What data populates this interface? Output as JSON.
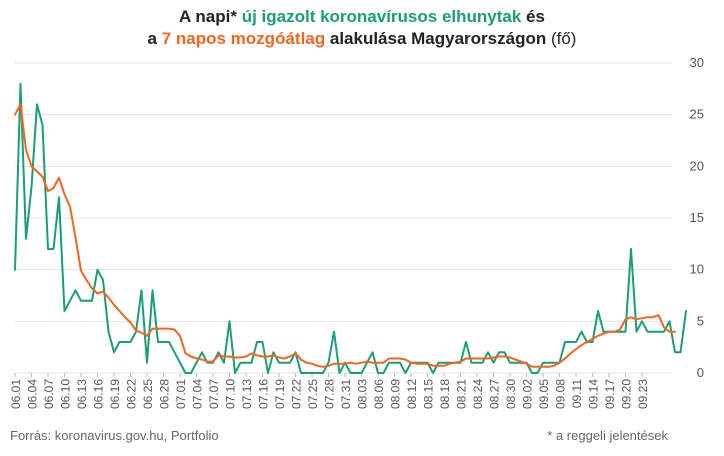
{
  "title": {
    "line1_pre": "A napi* ",
    "line1_green": "új igazolt koronavírusos elhunytak",
    "line1_post": " és",
    "line2_pre": "a ",
    "line2_orange": "7 napos mozgóátlag",
    "line2_post": " alakulása Magyarországon",
    "line2_unit": " (fő)"
  },
  "footer": {
    "source": "Forrás: koronavirus.gov.hu, Portfolio",
    "note": "* a reggeli jelentések"
  },
  "colors": {
    "daily": "#1a9e77",
    "avg": "#f26522",
    "grid": "#e4e4e4",
    "axis_text": "#555555"
  },
  "chart_data": {
    "type": "line",
    "start_date": "06.01",
    "x_tick_labels": [
      "06.01",
      "06.04",
      "06.07",
      "06.10",
      "06.13",
      "06.16",
      "06.19",
      "06.22",
      "06.25",
      "06.28",
      "07.01",
      "07.04",
      "07.07",
      "07.10",
      "07.13",
      "07.16",
      "07.19",
      "07.22",
      "07.25",
      "07.28",
      "07.31",
      "08.03",
      "08.06",
      "08.09",
      "08.12",
      "08.15",
      "08.18",
      "08.21",
      "08.24",
      "08.27",
      "08.30",
      "09.02",
      "09.05",
      "09.08",
      "09.11",
      "09.14",
      "09.17",
      "09.20",
      "09.23"
    ],
    "y_ticks": [
      0,
      5,
      10,
      15,
      20,
      25,
      30
    ],
    "ylim": [
      0,
      30
    ],
    "y_axis_side": "right",
    "grid": true,
    "series": [
      {
        "key": "daily",
        "values": [
          10,
          28,
          13,
          18,
          26,
          24,
          12,
          12,
          17,
          6,
          7,
          8,
          7,
          7,
          7,
          10,
          9,
          4,
          2,
          3,
          3,
          3,
          4,
          8,
          1,
          8,
          3,
          3,
          3,
          2,
          1,
          0,
          0,
          1,
          2,
          1,
          1,
          2,
          1,
          5,
          0,
          1,
          1,
          1,
          3,
          3,
          0,
          2,
          1,
          1,
          1,
          2,
          0,
          0,
          0,
          0,
          0,
          1,
          4,
          0,
          1,
          0,
          0,
          0,
          1,
          2,
          0,
          0,
          1,
          1,
          1,
          0,
          1,
          1,
          1,
          1,
          0,
          1,
          1,
          1,
          1,
          1,
          3,
          1,
          1,
          1,
          2,
          1,
          2,
          2,
          1,
          1,
          1,
          1,
          0,
          0,
          1,
          1,
          1,
          1,
          3,
          3,
          3,
          4,
          3,
          3,
          6,
          4,
          4,
          4,
          4,
          4,
          12,
          4,
          5,
          4,
          4,
          4,
          4,
          5,
          2,
          2,
          6
        ]
      },
      {
        "key": "avg",
        "values": [
          25,
          26,
          21.6,
          20,
          19.5,
          19,
          17.6,
          17.9,
          18.9,
          17.3,
          16.1,
          13.1,
          9.9,
          9,
          8.2,
          7.7,
          7.9,
          7.3,
          6.6,
          6,
          5.4,
          4.9,
          4.1,
          3.9,
          3.6,
          4.3,
          4.3,
          4.3,
          4.3,
          4.2,
          3.6,
          1.9,
          1.6,
          1.4,
          1.3,
          1.1,
          1.1,
          1.7,
          1.6,
          1.6,
          1.5,
          1.5,
          1.6,
          1.9,
          1.7,
          1.6,
          1.6,
          1.7,
          1.5,
          1.4,
          1.6,
          1.9,
          1.3,
          1,
          0.9,
          0.7,
          0.6,
          0.7,
          0.9,
          0.9,
          0.9,
          1,
          0.9,
          1,
          1.1,
          1,
          1,
          1,
          1.4,
          1.4,
          1.4,
          1.3,
          1,
          0.9,
          0.9,
          0.9,
          0.7,
          0.7,
          0.7,
          0.9,
          1,
          1.1,
          1.4,
          1.4,
          1.4,
          1.4,
          1.4,
          1.5,
          1.6,
          1.6,
          1.5,
          1.3,
          1.1,
          0.9,
          0.6,
          0.6,
          0.6,
          0.6,
          0.7,
          1,
          1.4,
          1.9,
          2.3,
          2.7,
          3,
          3.3,
          3.6,
          3.8,
          4,
          4,
          4.2,
          5.2,
          5.4,
          5.2,
          5.3,
          5.4,
          5.4,
          5.6,
          4.4,
          4,
          4
        ]
      }
    ]
  }
}
